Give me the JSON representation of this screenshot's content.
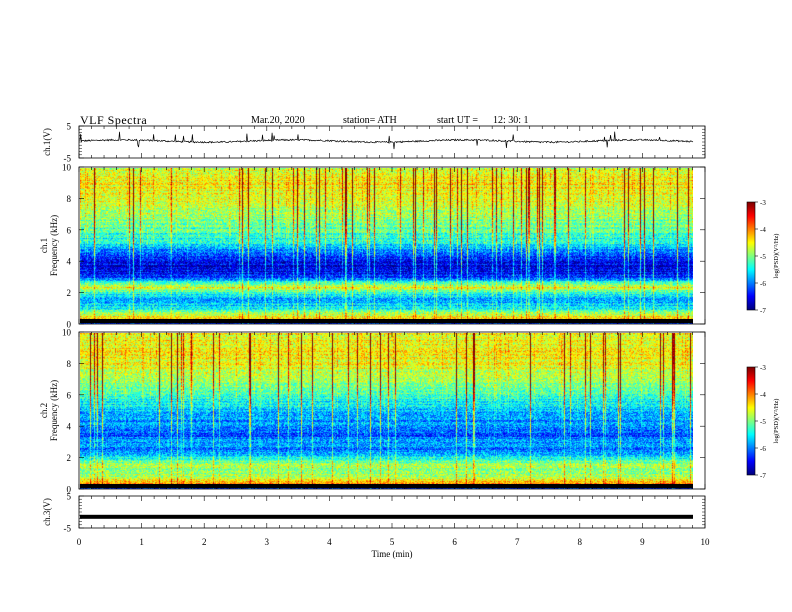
{
  "header": {
    "title": "VLF  Spectra",
    "date": "Mar.20, 2020",
    "station": "station= ATH",
    "start_label": "start  UT  =",
    "start_value": "12: 30: 1"
  },
  "chart_data": [
    {
      "type": "line",
      "ylabel": "ch.1(V)",
      "ylim": [
        -5,
        5
      ],
      "yticks": [
        "5",
        "-5"
      ],
      "xlim": [
        0,
        10
      ],
      "description_series": "time-domain waveform, baseline about 0.3 V with spikes to about ±2 V",
      "baseline_value": 0.3
    },
    {
      "type": "heatmap",
      "ylabel": "ch.1\nFrequency (kHz)",
      "ylabel_line1": "ch.1",
      "ylabel_line2": "Frequency (kHz)",
      "ylim": [
        0,
        10
      ],
      "yticks": [
        "0",
        "2",
        "4",
        "6",
        "8",
        "10"
      ],
      "xlim": [
        0,
        9.8
      ],
      "colorbar": {
        "label": "log(PSD)(V²/Hz)",
        "range": [
          -7,
          -3
        ],
        "ticks": [
          "-3",
          "-4",
          "-5",
          "-6",
          "-7"
        ]
      },
      "band_profile_khz_logpsd": [
        [
          0.0,
          -6.5
        ],
        [
          0.3,
          -4.2
        ],
        [
          0.6,
          -4.8
        ],
        [
          1.0,
          -5.6
        ],
        [
          1.5,
          -5.9
        ],
        [
          2.0,
          -5.4
        ],
        [
          2.3,
          -4.6
        ],
        [
          2.6,
          -5.3
        ],
        [
          3.0,
          -6.3
        ],
        [
          3.5,
          -6.7
        ],
        [
          4.0,
          -6.5
        ],
        [
          4.5,
          -6.3
        ],
        [
          5.0,
          -5.6
        ],
        [
          6.0,
          -5.2
        ],
        [
          7.0,
          -4.9
        ],
        [
          8.0,
          -4.6
        ],
        [
          9.0,
          -4.5
        ],
        [
          10.0,
          -4.7
        ]
      ]
    },
    {
      "type": "heatmap",
      "ylabel": "ch.2\nFrequency (kHz)",
      "ylabel_line1": "ch.2",
      "ylabel_line2": "Frequency (kHz)",
      "ylim": [
        0,
        10
      ],
      "yticks": [
        "0",
        "2",
        "4",
        "6",
        "8",
        "10"
      ],
      "xlim": [
        0,
        9.8
      ],
      "colorbar": {
        "label": "log(PSD)(V²/Hz)",
        "range": [
          -7,
          -3
        ],
        "ticks": [
          "-3",
          "-4",
          "-5",
          "-6",
          "-7"
        ]
      },
      "band_profile_khz_logpsd": [
        [
          0.0,
          -6.4
        ],
        [
          0.3,
          -4.1
        ],
        [
          0.6,
          -4.6
        ],
        [
          1.0,
          -5.0
        ],
        [
          1.5,
          -4.9
        ],
        [
          2.0,
          -5.5
        ],
        [
          2.5,
          -6.0
        ],
        [
          3.0,
          -5.9
        ],
        [
          3.5,
          -6.2
        ],
        [
          4.0,
          -6.0
        ],
        [
          5.0,
          -5.7
        ],
        [
          6.0,
          -5.3
        ],
        [
          7.0,
          -4.9
        ],
        [
          8.0,
          -4.6
        ],
        [
          9.0,
          -4.5
        ],
        [
          10.0,
          -4.6
        ]
      ]
    },
    {
      "type": "line",
      "ylabel": "ch.3(V)",
      "ylim": [
        -5,
        5
      ],
      "yticks": [
        "5",
        "-5"
      ],
      "xlim": [
        0,
        9.8
      ],
      "baseline_value": -1.5
    }
  ],
  "x_axis": {
    "label": "Time  (min)",
    "range": [
      0,
      10
    ],
    "ticks": [
      "0",
      "1",
      "2",
      "3",
      "4",
      "5",
      "6",
      "7",
      "8",
      "9",
      "10"
    ]
  }
}
